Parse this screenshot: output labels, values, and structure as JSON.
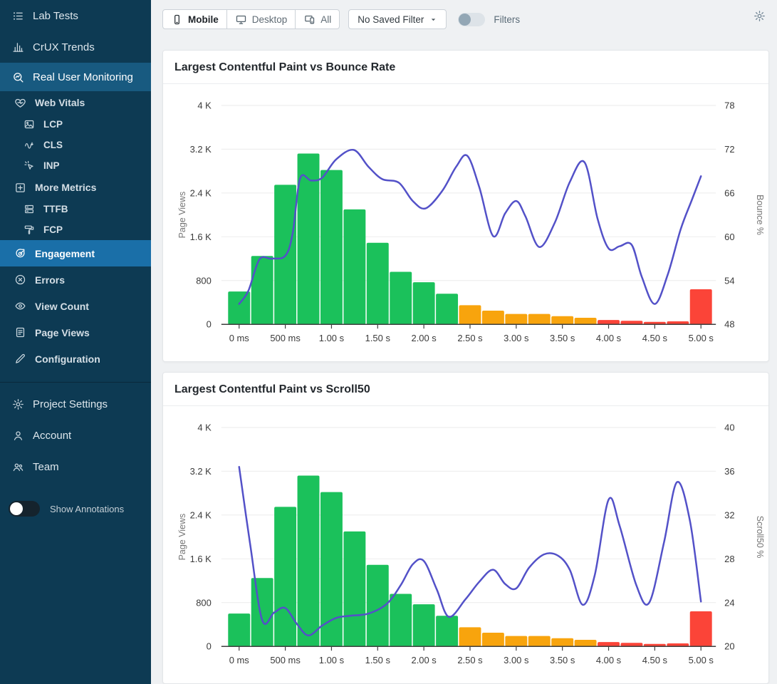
{
  "colors": {
    "sidebar_bg": "#0d3a53",
    "sidebar_active_section": "#185a80",
    "sidebar_active_item": "#1a6fa8",
    "bar_green": "#1bc15b",
    "bar_orange": "#f8a40d",
    "bar_red": "#fb4438",
    "line_indigo": "#5351c8"
  },
  "sidebar": {
    "items": [
      {
        "label": "Lab Tests",
        "icon": "list-icon",
        "level": 0
      },
      {
        "label": "CrUX Trends",
        "icon": "bar-chart-icon",
        "level": 0
      },
      {
        "label": "Real User Monitoring",
        "icon": "monitor-search-icon",
        "level": 0,
        "active": "section"
      },
      {
        "label": "Web Vitals",
        "icon": "heart-pulse-icon",
        "level": 1
      },
      {
        "label": "LCP",
        "icon": "image-icon",
        "level": 2
      },
      {
        "label": "CLS",
        "icon": "shift-icon",
        "level": 2
      },
      {
        "label": "INP",
        "icon": "cursor-click-icon",
        "level": 2
      },
      {
        "label": "More Metrics",
        "icon": "plus-square-icon",
        "level": 1
      },
      {
        "label": "TTFB",
        "icon": "server-icon",
        "level": 2
      },
      {
        "label": "FCP",
        "icon": "paint-roller-icon",
        "level": 2
      },
      {
        "label": "Engagement",
        "icon": "target-icon",
        "level": 3,
        "active": "item"
      },
      {
        "label": "Errors",
        "icon": "error-circle-icon",
        "level": 3
      },
      {
        "label": "View Count",
        "icon": "eye-icon",
        "level": 3
      },
      {
        "label": "Page Views",
        "icon": "document-icon",
        "level": 3
      },
      {
        "label": "Configuration",
        "icon": "pencil-icon",
        "level": 3
      }
    ],
    "footer_items": [
      {
        "label": "Project Settings",
        "icon": "gear-icon"
      },
      {
        "label": "Account",
        "icon": "user-icon"
      },
      {
        "label": "Team",
        "icon": "team-icon"
      }
    ],
    "annotations_toggle": {
      "label": "Show Annotations",
      "enabled": false
    }
  },
  "topbar": {
    "device_toggle": [
      {
        "label": "Mobile",
        "icon": "phone-icon",
        "selected": true
      },
      {
        "label": "Desktop",
        "icon": "monitor-icon",
        "selected": false
      },
      {
        "label": "All",
        "icon": "devices-icon",
        "selected": false
      }
    ],
    "saved_filter": {
      "label": "No Saved Filter",
      "caret_icon": "caret-down-icon"
    },
    "filters": {
      "label": "Filters",
      "enabled": false
    },
    "settings_icon": "gear-icon"
  },
  "chart_data": [
    {
      "type": "bar+line",
      "title": "Largest Contentful Paint vs Bounce Rate",
      "xlabel": "Largest Contentful Paint",
      "ylabel_left": "Page Views",
      "ylabel_right": "Bounce %",
      "ylim_left": [
        0,
        4000
      ],
      "ylim_right": [
        48,
        78
      ],
      "left_ticks": [
        {
          "value": 0,
          "label": "0"
        },
        {
          "value": 800,
          "label": "800"
        },
        {
          "value": 1600,
          "label": "1.6 K"
        },
        {
          "value": 2400,
          "label": "2.4 K"
        },
        {
          "value": 3200,
          "label": "3.2 K"
        },
        {
          "value": 4000,
          "label": "4 K"
        }
      ],
      "right_ticks": [
        {
          "value": 48,
          "label": "48"
        },
        {
          "value": 54,
          "label": "54"
        },
        {
          "value": 60,
          "label": "60"
        },
        {
          "value": 66,
          "label": "66"
        },
        {
          "value": 72,
          "label": "72"
        },
        {
          "value": 78,
          "label": "78"
        }
      ],
      "x_ticks": [
        {
          "s": 0,
          "label": "0 ms"
        },
        {
          "s": 0.5,
          "label": "500 ms"
        },
        {
          "s": 1,
          "label": "1.00 s"
        },
        {
          "s": 1.5,
          "label": "1.50 s"
        },
        {
          "s": 2,
          "label": "2.00 s"
        },
        {
          "s": 2.5,
          "label": "2.50 s"
        },
        {
          "s": 3,
          "label": "3.00 s"
        },
        {
          "s": 3.5,
          "label": "3.50 s"
        },
        {
          "s": 4,
          "label": "4.00 s"
        },
        {
          "s": 4.5,
          "label": "4.50 s"
        },
        {
          "s": 5,
          "label": "5.00 s"
        }
      ],
      "bars": {
        "bin_width_s": 0.25,
        "values": [
          600,
          1250,
          2550,
          3120,
          2820,
          2100,
          1490,
          960,
          770,
          560,
          350,
          250,
          190,
          190,
          150,
          120,
          80,
          65,
          45,
          55,
          640
        ],
        "colors": [
          "#1bc15b",
          "#1bc15b",
          "#1bc15b",
          "#1bc15b",
          "#1bc15b",
          "#1bc15b",
          "#1bc15b",
          "#1bc15b",
          "#1bc15b",
          "#1bc15b",
          "#f8a40d",
          "#f8a40d",
          "#f8a40d",
          "#f8a40d",
          "#f8a40d",
          "#f8a40d",
          "#fb4438",
          "#fb4438",
          "#fb4438",
          "#fb4438",
          "#fb4438"
        ]
      },
      "line": {
        "name": "Bounce %",
        "color": "#5351c8",
        "points": [
          [
            0,
            50.8
          ],
          [
            0.1,
            52.6
          ],
          [
            0.22,
            56.9
          ],
          [
            0.35,
            57.0
          ],
          [
            0.5,
            57.4
          ],
          [
            0.58,
            60.5
          ],
          [
            0.66,
            68.0
          ],
          [
            0.78,
            67.7
          ],
          [
            0.9,
            68.1
          ],
          [
            1.05,
            70.6
          ],
          [
            1.24,
            71.9
          ],
          [
            1.4,
            69.6
          ],
          [
            1.55,
            67.9
          ],
          [
            1.73,
            67.4
          ],
          [
            1.88,
            64.9
          ],
          [
            2.02,
            63.9
          ],
          [
            2.2,
            66.3
          ],
          [
            2.35,
            69.6
          ],
          [
            2.47,
            71.1
          ],
          [
            2.6,
            66.8
          ],
          [
            2.75,
            60.1
          ],
          [
            2.88,
            63.2
          ],
          [
            3.0,
            64.9
          ],
          [
            3.1,
            62.8
          ],
          [
            3.25,
            58.6
          ],
          [
            3.42,
            62.0
          ],
          [
            3.58,
            67.5
          ],
          [
            3.74,
            70.2
          ],
          [
            3.88,
            62.5
          ],
          [
            4.0,
            58.4
          ],
          [
            4.12,
            58.7
          ],
          [
            4.25,
            58.9
          ],
          [
            4.36,
            54.5
          ],
          [
            4.5,
            50.8
          ],
          [
            4.64,
            54.8
          ],
          [
            4.78,
            61.0
          ],
          [
            4.9,
            65.0
          ],
          [
            5.0,
            68.3
          ]
        ]
      }
    },
    {
      "type": "bar+line",
      "title": "Largest Contentful Paint vs Scroll50",
      "xlabel": "Largest Contentful Paint",
      "ylabel_left": "Page Views",
      "ylabel_right": "Scroll50 %",
      "ylim_left": [
        0,
        4000
      ],
      "ylim_right": [
        20,
        40
      ],
      "left_ticks": [
        {
          "value": 0,
          "label": "0"
        },
        {
          "value": 800,
          "label": "800"
        },
        {
          "value": 1600,
          "label": "1.6 K"
        },
        {
          "value": 2400,
          "label": "2.4 K"
        },
        {
          "value": 3200,
          "label": "3.2 K"
        },
        {
          "value": 4000,
          "label": "4 K"
        }
      ],
      "right_ticks": [
        {
          "value": 20,
          "label": "20"
        },
        {
          "value": 24,
          "label": "24"
        },
        {
          "value": 28,
          "label": "28"
        },
        {
          "value": 32,
          "label": "32"
        },
        {
          "value": 36,
          "label": "36"
        },
        {
          "value": 40,
          "label": "40"
        }
      ],
      "x_ticks": [
        {
          "s": 0,
          "label": "0 ms"
        },
        {
          "s": 0.5,
          "label": "500 ms"
        },
        {
          "s": 1,
          "label": "1.00 s"
        },
        {
          "s": 1.5,
          "label": "1.50 s"
        },
        {
          "s": 2,
          "label": "2.00 s"
        },
        {
          "s": 2.5,
          "label": "2.50 s"
        },
        {
          "s": 3,
          "label": "3.00 s"
        },
        {
          "s": 3.5,
          "label": "3.50 s"
        },
        {
          "s": 4,
          "label": "4.00 s"
        },
        {
          "s": 4.5,
          "label": "4.50 s"
        },
        {
          "s": 5,
          "label": "5.00 s"
        }
      ],
      "bars": {
        "bin_width_s": 0.25,
        "values": [
          600,
          1250,
          2550,
          3120,
          2820,
          2100,
          1490,
          960,
          770,
          560,
          350,
          250,
          190,
          190,
          150,
          120,
          80,
          65,
          45,
          55,
          640
        ],
        "colors": [
          "#1bc15b",
          "#1bc15b",
          "#1bc15b",
          "#1bc15b",
          "#1bc15b",
          "#1bc15b",
          "#1bc15b",
          "#1bc15b",
          "#1bc15b",
          "#1bc15b",
          "#f8a40d",
          "#f8a40d",
          "#f8a40d",
          "#f8a40d",
          "#f8a40d",
          "#f8a40d",
          "#fb4438",
          "#fb4438",
          "#fb4438",
          "#fb4438",
          "#fb4438"
        ]
      },
      "line": {
        "name": "Scroll50 %",
        "color": "#5351c8",
        "points": [
          [
            0,
            36.4
          ],
          [
            0.12,
            29.3
          ],
          [
            0.25,
            22.4
          ],
          [
            0.38,
            23.1
          ],
          [
            0.5,
            23.5
          ],
          [
            0.63,
            22.0
          ],
          [
            0.75,
            21.0
          ],
          [
            0.9,
            21.9
          ],
          [
            1.05,
            22.6
          ],
          [
            1.2,
            22.8
          ],
          [
            1.4,
            23.0
          ],
          [
            1.6,
            23.9
          ],
          [
            1.75,
            25.6
          ],
          [
            1.88,
            27.5
          ],
          [
            2.0,
            27.8
          ],
          [
            2.14,
            25.2
          ],
          [
            2.27,
            22.7
          ],
          [
            2.45,
            24.3
          ],
          [
            2.6,
            25.9
          ],
          [
            2.75,
            27.0
          ],
          [
            2.88,
            25.7
          ],
          [
            3.0,
            25.3
          ],
          [
            3.14,
            27.2
          ],
          [
            3.3,
            28.4
          ],
          [
            3.45,
            28.3
          ],
          [
            3.58,
            27.0
          ],
          [
            3.72,
            23.8
          ],
          [
            3.85,
            26.5
          ],
          [
            4.0,
            33.4
          ],
          [
            4.12,
            31.0
          ],
          [
            4.3,
            25.6
          ],
          [
            4.44,
            24.0
          ],
          [
            4.6,
            29.5
          ],
          [
            4.74,
            35.0
          ],
          [
            4.88,
            31.5
          ],
          [
            5.0,
            24.1
          ]
        ]
      }
    }
  ]
}
